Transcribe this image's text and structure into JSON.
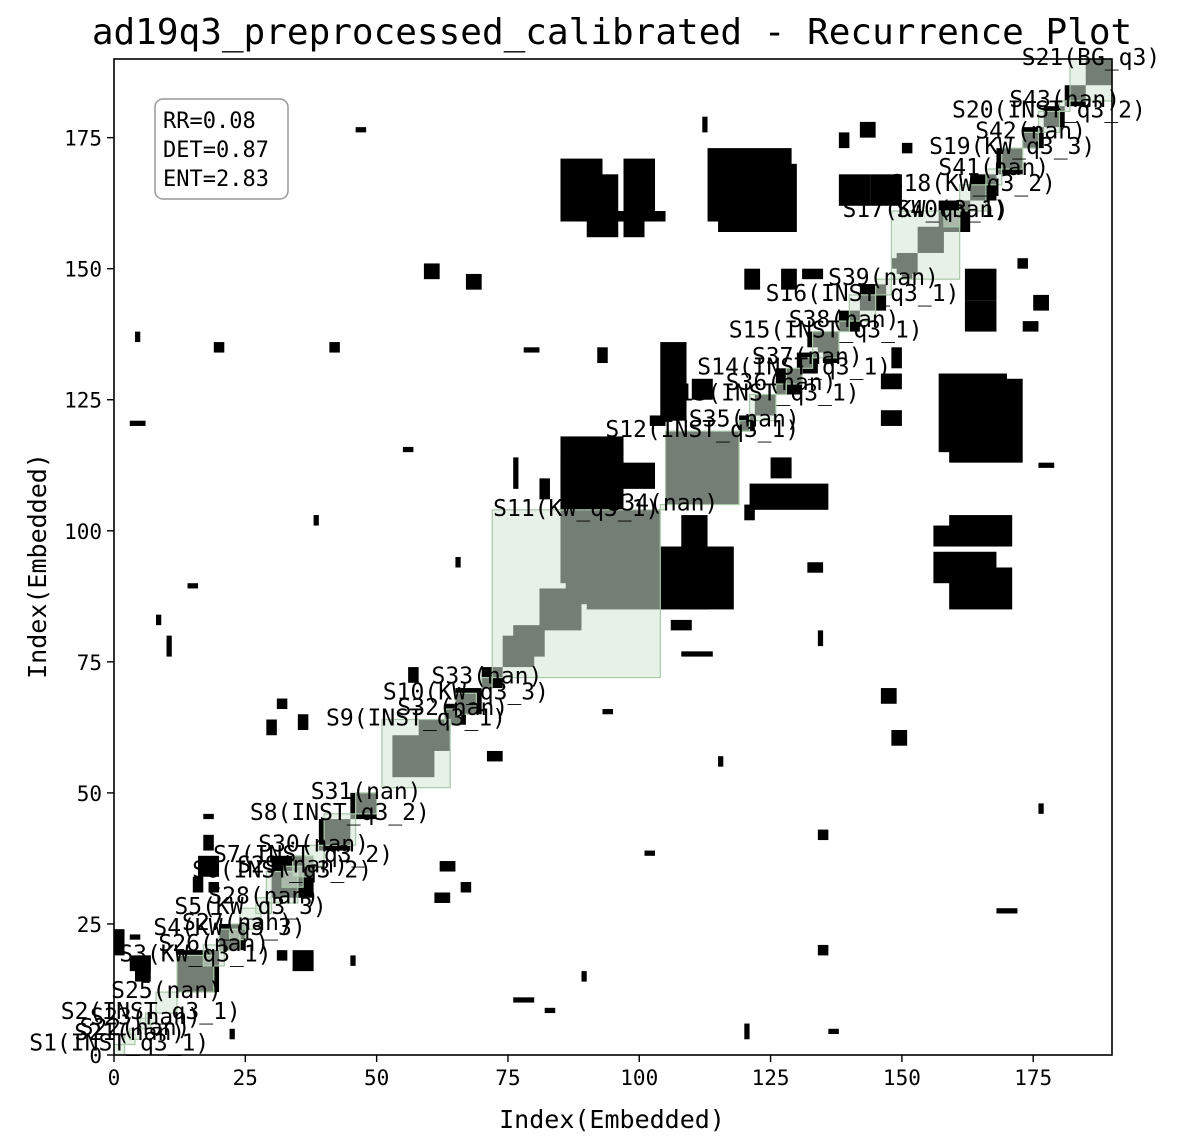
{
  "chart_data": {
    "type": "heatmap",
    "title": "ad19q3_preprocessed_calibrated - Recurrence Plot",
    "xlabel": "Index(Embedded)",
    "ylabel": "Index(Embedded)",
    "xlim": [
      0,
      190
    ],
    "ylim": [
      0,
      190
    ],
    "xticks": [
      0,
      25,
      50,
      75,
      100,
      125,
      150,
      175
    ],
    "yticks": [
      0,
      25,
      50,
      75,
      100,
      125,
      150,
      175
    ],
    "stats": [
      "RR=0.08",
      "DET=0.87",
      "ENT=2.83"
    ],
    "colors": {
      "recurrence": "#000000",
      "segment_fill": "#d6e6d6",
      "segment_edge": "#a8c8a8",
      "overlap": "#22301f"
    },
    "segments": [
      {
        "label": "S1(INST_q3_1)",
        "start": 0,
        "end": 2
      },
      {
        "label": "S21(nan)",
        "start": 2,
        "end": 4
      },
      {
        "label": "S22(nan)",
        "start": 3,
        "end": 5
      },
      {
        "label": "S23(nan)",
        "start": 5,
        "end": 7
      },
      {
        "label": "S2(INST_q3_1)",
        "start": 6,
        "end": 8
      },
      {
        "label": "S25(nan)",
        "start": 8,
        "end": 12
      },
      {
        "label": "S3(KW_q3_1)",
        "start": 12,
        "end": 19
      },
      {
        "label": "S26(nan)",
        "start": 17,
        "end": 21
      },
      {
        "label": "S4(KW_q3_3)",
        "start": 20,
        "end": 24
      },
      {
        "label": "S27(nan)",
        "start": 22,
        "end": 25
      },
      {
        "label": "S5(KW_q3_3)",
        "start": 24,
        "end": 28
      },
      {
        "label": "S28(nan)",
        "start": 27,
        "end": 30
      },
      {
        "label": "S6(INST_q3_2)",
        "start": 29,
        "end": 35
      },
      {
        "label": "S29(nan)",
        "start": 32,
        "end": 36
      },
      {
        "label": "S7(INST_q3_2)",
        "start": 34,
        "end": 38
      },
      {
        "label": "S30(nan)",
        "start": 36,
        "end": 40
      },
      {
        "label": "S8(INST_q3_2)",
        "start": 40,
        "end": 46
      },
      {
        "label": "S31(nan)",
        "start": 46,
        "end": 50
      },
      {
        "label": "S9(INST_q3_1)",
        "start": 51,
        "end": 64
      },
      {
        "label": "S32(nan)",
        "start": 63,
        "end": 66
      },
      {
        "label": "S10(KW_q3_3)",
        "start": 65,
        "end": 69
      },
      {
        "label": "S33(nan)",
        "start": 70,
        "end": 72
      },
      {
        "label": "S11(KW_q3_1)",
        "start": 72,
        "end": 104
      },
      {
        "label": "S34(nan)",
        "start": 104,
        "end": 105
      },
      {
        "label": "S12(INST_q3_1)",
        "start": 105,
        "end": 119
      },
      {
        "label": "S35(nan)",
        "start": 119,
        "end": 121
      },
      {
        "label": "S13(INST_q3_1)",
        "start": 121,
        "end": 126
      },
      {
        "label": "S36(nan)",
        "start": 126,
        "end": 128
      },
      {
        "label": "S14(INST_q3_1)",
        "start": 128,
        "end": 131
      },
      {
        "label": "S37(nan)",
        "start": 131,
        "end": 133
      },
      {
        "label": "S15(INST_q3_1)",
        "start": 133,
        "end": 138
      },
      {
        "label": "S38(nan)",
        "start": 138,
        "end": 140
      },
      {
        "label": "S16(INST_q3_1)",
        "start": 140,
        "end": 145
      },
      {
        "label": "S39(nan)",
        "start": 145,
        "end": 148
      },
      {
        "label": "S17(KW_q3_1)",
        "start": 148,
        "end": 161
      },
      {
        "label": "S40(nan)",
        "start": 158,
        "end": 161
      },
      {
        "label": "S18(KW_q3_2)",
        "start": 161,
        "end": 166
      },
      {
        "label": "S41(nan)",
        "start": 166,
        "end": 169
      },
      {
        "label": "S19(KW_q3_3)",
        "start": 169,
        "end": 173
      },
      {
        "label": "S42(nan)",
        "start": 173,
        "end": 176
      },
      {
        "label": "S20(INST_q3_2)",
        "start": 176,
        "end": 180
      },
      {
        "label": "S43(nan)",
        "start": 180,
        "end": 182
      },
      {
        "label": "S21(BG_q3)",
        "start": 182,
        "end": 190
      }
    ],
    "recurrence_blocks": [
      [
        0,
        19,
        2,
        5
      ],
      [
        4,
        14,
        3,
        5
      ],
      [
        3,
        16,
        4,
        3
      ],
      [
        15,
        31,
        2,
        3
      ],
      [
        17,
        39,
        2,
        3
      ],
      [
        12,
        12,
        8,
        8
      ],
      [
        20,
        20,
        5,
        5
      ],
      [
        30,
        30,
        8,
        8
      ],
      [
        39,
        39,
        6,
        6
      ],
      [
        45,
        45,
        5,
        5
      ],
      [
        53,
        53,
        8,
        8
      ],
      [
        60,
        60,
        4,
        4
      ],
      [
        65,
        65,
        5,
        5
      ],
      [
        70,
        70,
        4,
        4
      ],
      [
        76,
        76,
        6,
        6
      ],
      [
        81,
        81,
        8,
        8
      ],
      [
        88,
        88,
        6,
        6
      ],
      [
        94,
        94,
        8,
        8
      ],
      [
        100,
        100,
        4,
        4
      ],
      [
        86,
        86,
        18,
        18
      ],
      [
        74,
        74,
        6,
        6
      ],
      [
        105,
        105,
        14,
        14
      ],
      [
        119,
        119,
        3,
        3
      ],
      [
        122,
        122,
        4,
        4
      ],
      [
        126,
        126,
        5,
        5
      ],
      [
        130,
        130,
        4,
        4
      ],
      [
        134,
        134,
        4,
        4
      ],
      [
        138,
        138,
        4,
        4
      ],
      [
        142,
        142,
        5,
        5
      ],
      [
        149,
        149,
        4,
        4
      ],
      [
        153,
        153,
        5,
        5
      ],
      [
        157,
        157,
        6,
        6
      ],
      [
        163,
        163,
        5,
        5
      ],
      [
        168,
        168,
        5,
        5
      ],
      [
        173,
        173,
        4,
        4
      ],
      [
        177,
        177,
        4,
        4
      ],
      [
        181,
        181,
        4,
        4
      ],
      [
        185,
        185,
        5,
        5
      ],
      [
        34,
        16,
        4,
        4
      ],
      [
        16,
        34,
        4,
        4
      ],
      [
        34,
        34,
        4,
        4
      ],
      [
        85,
        104,
        12,
        14
      ],
      [
        104,
        85,
        14,
        12
      ],
      [
        85,
        90,
        8,
        15
      ],
      [
        90,
        85,
        15,
        8
      ],
      [
        108,
        85,
        5,
        18
      ],
      [
        85,
        108,
        18,
        5
      ],
      [
        104,
        121,
        5,
        15
      ],
      [
        121,
        104,
        15,
        5
      ],
      [
        85,
        159,
        8,
        12
      ],
      [
        159,
        85,
        12,
        8
      ],
      [
        97,
        159,
        6,
        12
      ],
      [
        159,
        97,
        12,
        6
      ],
      [
        113,
        159,
        16,
        14
      ],
      [
        159,
        113,
        14,
        16
      ],
      [
        88,
        159,
        17,
        2
      ],
      [
        162,
        138,
        6,
        6
      ],
      [
        138,
        162,
        6,
        6
      ],
      [
        144,
        162,
        6,
        6
      ],
      [
        162,
        144,
        6,
        6
      ],
      [
        88,
        90,
        4,
        4
      ],
      [
        110,
        125,
        4,
        4
      ],
      [
        125,
        110,
        4,
        4
      ],
      [
        110,
        88,
        6,
        9
      ],
      [
        88,
        110,
        9,
        6
      ],
      [
        156,
        97,
        14,
        4
      ],
      [
        97,
        156,
        4,
        14
      ],
      [
        156,
        90,
        12,
        6
      ],
      [
        90,
        156,
        6,
        12
      ],
      [
        157,
        115,
        13,
        15
      ],
      [
        115,
        157,
        15,
        13
      ],
      [
        67,
        146,
        3,
        3
      ],
      [
        146,
        67,
        3,
        3
      ],
      [
        59,
        148,
        3,
        3
      ],
      [
        148,
        59,
        3,
        3
      ],
      [
        76,
        108,
        1,
        6
      ],
      [
        108,
        76,
        6,
        1
      ],
      [
        81,
        106,
        2,
        4
      ],
      [
        106,
        81,
        4,
        2
      ],
      [
        138,
        173,
        2,
        3
      ],
      [
        173,
        138,
        3,
        2
      ],
      [
        142,
        175,
        3,
        3
      ],
      [
        175,
        142,
        3,
        3
      ],
      [
        120,
        146,
        3,
        4
      ],
      [
        146,
        120,
        4,
        3
      ],
      [
        127,
        146,
        3,
        4
      ],
      [
        146,
        127,
        4,
        3
      ],
      [
        132,
        135,
        3,
        3
      ],
      [
        135,
        132,
        3,
        3
      ],
      [
        131,
        148,
        4,
        2
      ],
      [
        148,
        131,
        2,
        4
      ],
      [
        58,
        58,
        6,
        6
      ],
      [
        63,
        63,
        4,
        4
      ],
      [
        29,
        61,
        2,
        3
      ],
      [
        61,
        29,
        3,
        2
      ],
      [
        31,
        66,
        2,
        2
      ],
      [
        66,
        31,
        2,
        2
      ],
      [
        3,
        120,
        3,
        1
      ],
      [
        120,
        3,
        1,
        3
      ],
      [
        19,
        134,
        2,
        2
      ],
      [
        134,
        19,
        2,
        2
      ],
      [
        41,
        134,
        2,
        2
      ],
      [
        134,
        41,
        2,
        2
      ],
      [
        46,
        176,
        2,
        1
      ],
      [
        176,
        46,
        1,
        2
      ],
      [
        56,
        71,
        2,
        3
      ],
      [
        71,
        56,
        3,
        2
      ],
      [
        14,
        89,
        2,
        1
      ],
      [
        89,
        14,
        1,
        2
      ],
      [
        132,
        92,
        3,
        2
      ],
      [
        92,
        132,
        2,
        3
      ],
      [
        118,
        163,
        3,
        2
      ],
      [
        163,
        118,
        2,
        3
      ],
      [
        10,
        76,
        1,
        4
      ],
      [
        76,
        10,
        4,
        1
      ],
      [
        4,
        136,
        1,
        2
      ],
      [
        136,
        4,
        2,
        1
      ],
      [
        148,
        150,
        3,
        2
      ],
      [
        150,
        148,
        2,
        3
      ],
      [
        150,
        172,
        2,
        2
      ],
      [
        172,
        150,
        2,
        2
      ],
      [
        120,
        102,
        2,
        3
      ],
      [
        102,
        120,
        3,
        2
      ],
      [
        62,
        35,
        3,
        2
      ],
      [
        35,
        62,
        2,
        3
      ],
      [
        18,
        31,
        2,
        2
      ],
      [
        31,
        18,
        2,
        2
      ],
      [
        27,
        168,
        1,
        4
      ],
      [
        168,
        27,
        4,
        1
      ],
      [
        55,
        115,
        2,
        1
      ],
      [
        115,
        55,
        1,
        2
      ],
      [
        134,
        78,
        1,
        3
      ],
      [
        78,
        134,
        3,
        1
      ],
      [
        3,
        22,
        2,
        1
      ],
      [
        22,
        3,
        1,
        2
      ],
      [
        45,
        17,
        1,
        2
      ],
      [
        17,
        45,
        2,
        1
      ],
      [
        112,
        176,
        1,
        3
      ],
      [
        176,
        112,
        3,
        1
      ],
      [
        101,
        38,
        2,
        1
      ],
      [
        38,
        101,
        1,
        2
      ],
      [
        65,
        93,
        1,
        2
      ],
      [
        93,
        65,
        2,
        1
      ],
      [
        82,
        8,
        2,
        1
      ],
      [
        8,
        82,
        1,
        2
      ]
    ]
  }
}
